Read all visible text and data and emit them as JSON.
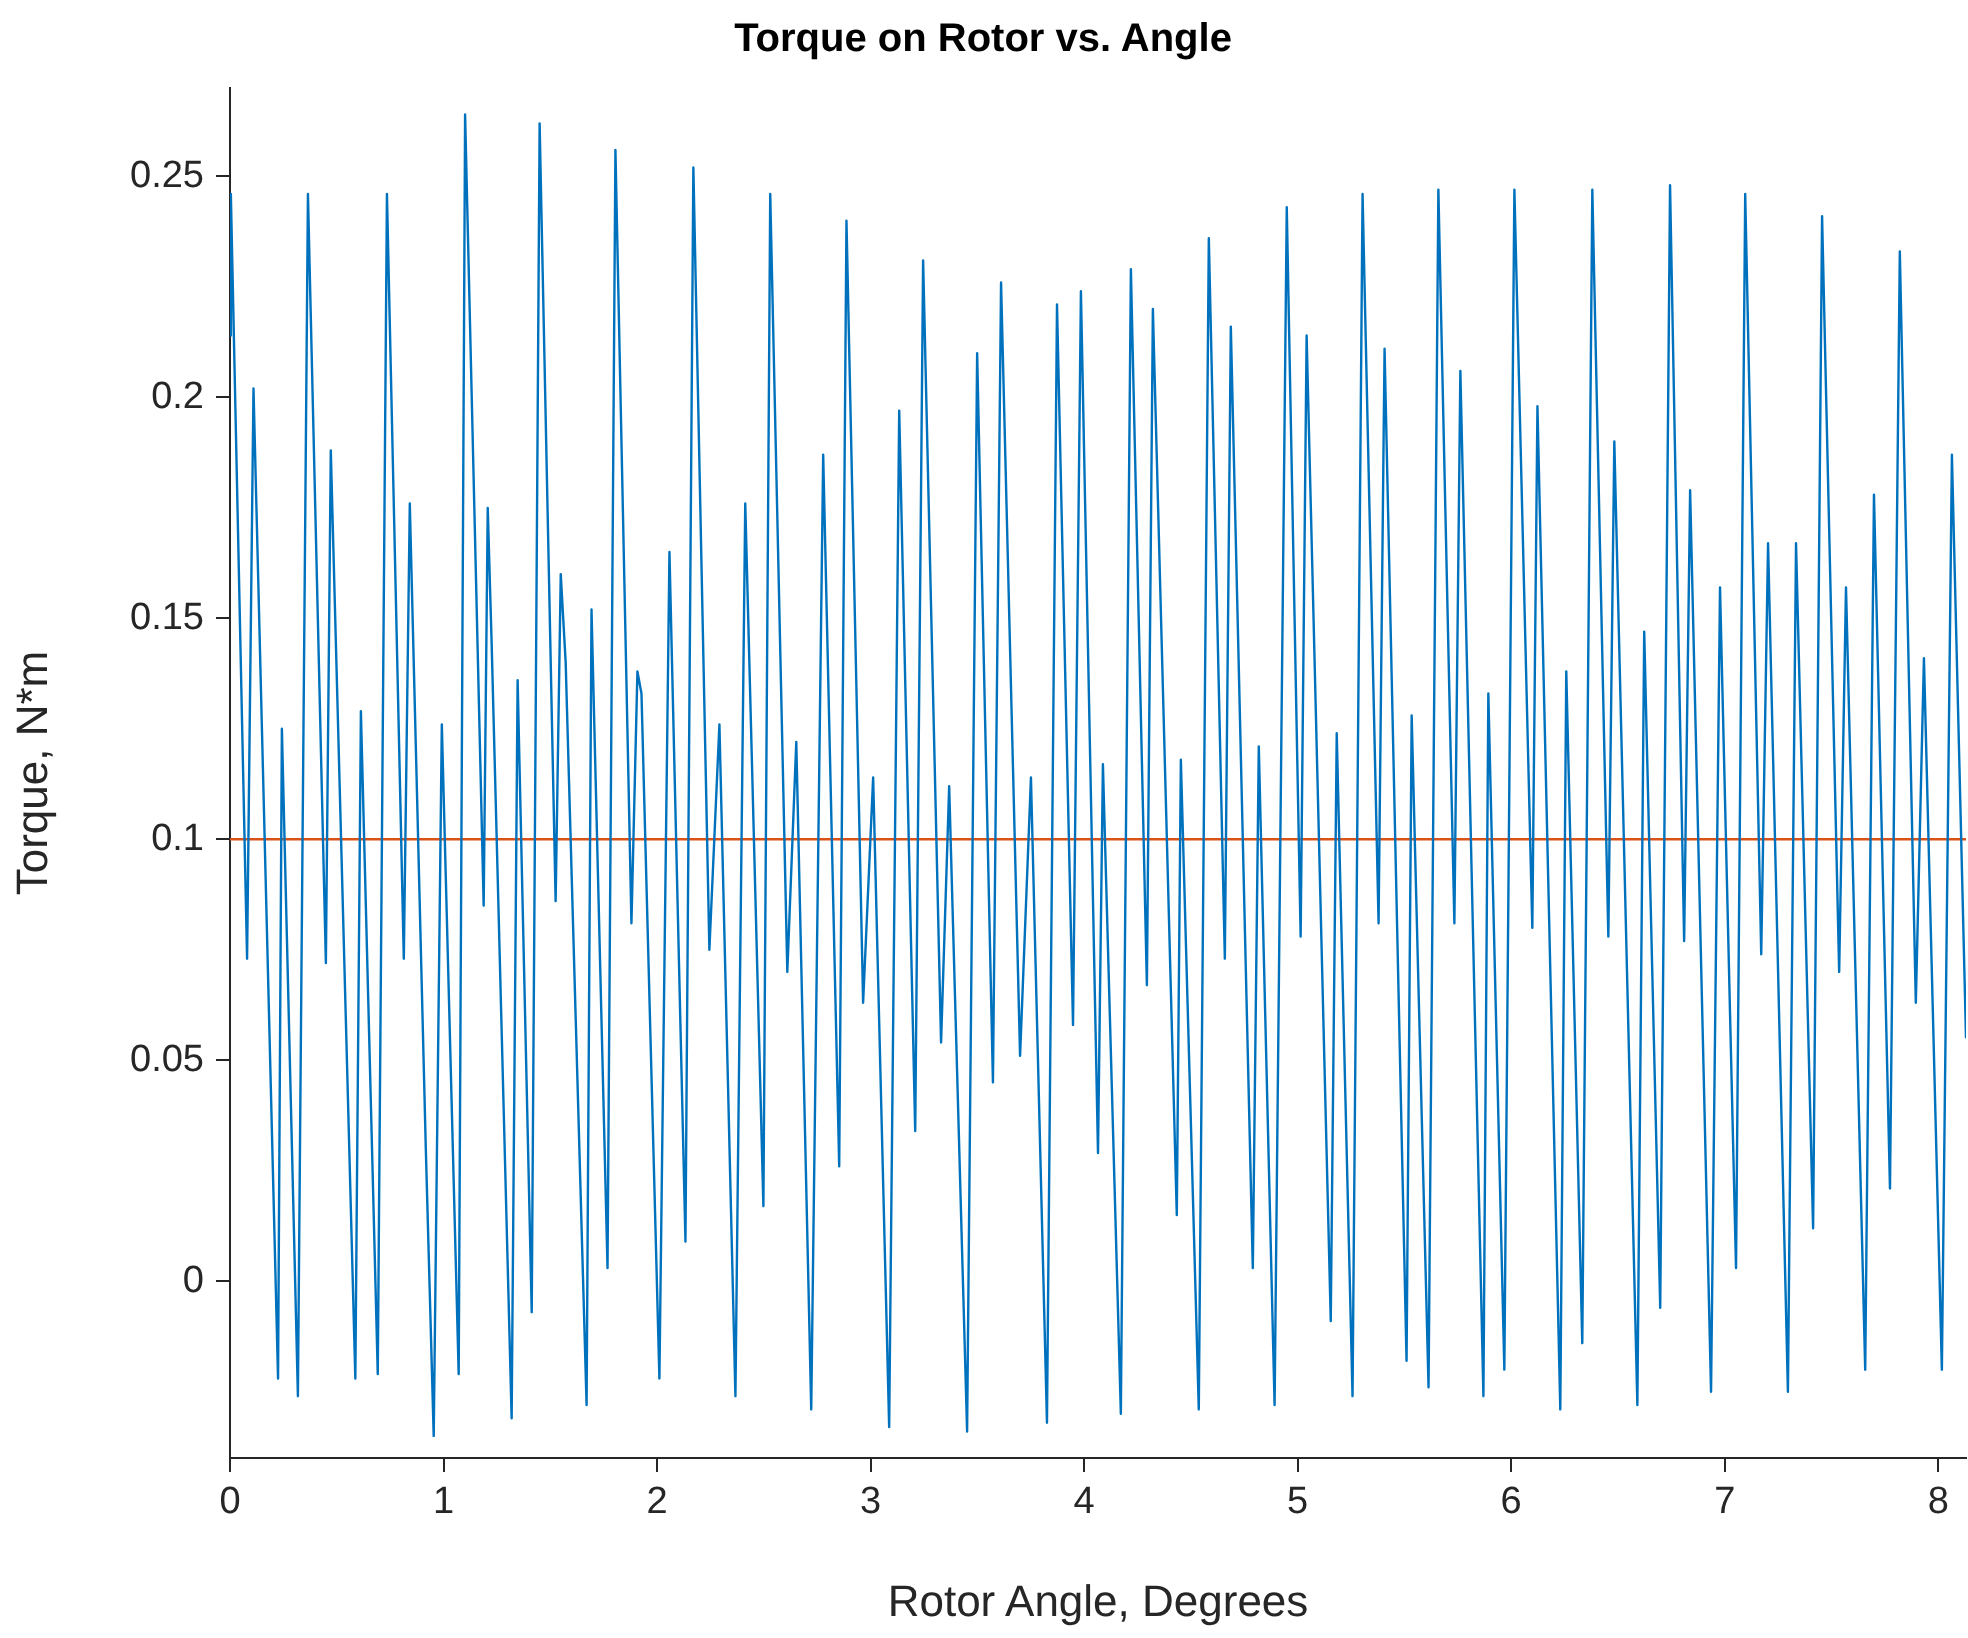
{
  "chart_data": {
    "type": "line",
    "title": "Torque on Rotor vs. Angle",
    "xlabel": "Rotor Angle, Degrees",
    "ylabel": "Torque, N*m",
    "x": [
      0,
      0.004,
      0.08,
      0.11,
      0.225,
      0.243,
      0.318,
      0.365,
      0.449,
      0.472,
      0.587,
      0.613,
      0.692,
      0.735,
      0.814,
      0.842,
      0.917,
      0.954,
      0.992,
      1.071,
      1.101,
      1.188,
      1.207,
      1.225,
      1.319,
      1.347,
      1.413,
      1.45,
      1.525,
      1.549,
      1.572,
      1.67,
      1.693,
      1.768,
      1.805,
      1.88,
      1.908,
      1.927,
      2.011,
      2.058,
      2.133,
      2.17,
      2.245,
      2.292,
      2.367,
      2.413,
      2.498,
      2.53,
      2.61,
      2.652,
      2.722,
      2.778,
      2.853,
      2.887,
      2.965,
      3.012,
      3.087,
      3.134,
      3.209,
      3.246,
      3.33,
      3.368,
      3.452,
      3.499,
      3.573,
      3.611,
      3.7,
      3.751,
      3.826,
      3.873,
      3.948,
      3.985,
      4.065,
      4.088,
      4.172,
      4.219,
      4.294,
      4.322,
      4.434,
      4.453,
      4.537,
      4.584,
      4.659,
      4.687,
      4.79,
      4.818,
      4.892,
      4.949,
      5.014,
      5.042,
      5.155,
      5.183,
      5.257,
      5.304,
      5.379,
      5.407,
      5.51,
      5.534,
      5.613,
      5.659,
      5.734,
      5.762,
      5.87,
      5.893,
      5.968,
      6.015,
      6.099,
      6.123,
      6.23,
      6.258,
      6.333,
      6.38,
      6.455,
      6.483,
      6.591,
      6.623,
      6.698,
      6.744,
      6.81,
      6.838,
      6.936,
      6.978,
      7.053,
      7.096,
      7.171,
      7.203,
      7.296,
      7.334,
      7.414,
      7.456,
      7.536,
      7.568,
      7.658,
      7.699,
      7.774,
      7.82,
      7.895,
      7.933,
      8.017,
      8.064,
      8.13
    ],
    "series": [
      {
        "color": "#0072bd",
        "values": [
          0.214,
          0.246,
          0.073,
          0.202,
          -0.022,
          0.125,
          -0.026,
          0.246,
          0.072,
          0.188,
          -0.022,
          0.129,
          -0.021,
          0.246,
          0.073,
          0.176,
          0.03,
          -0.035,
          0.126,
          -0.021,
          0.264,
          0.085,
          0.175,
          0.145,
          -0.031,
          0.136,
          -0.007,
          0.262,
          0.086,
          0.16,
          0.14,
          -0.028,
          0.152,
          0.003,
          0.256,
          0.081,
          0.138,
          0.133,
          -0.022,
          0.165,
          0.009,
          0.252,
          0.075,
          0.126,
          -0.026,
          0.176,
          0.017,
          0.246,
          0.07,
          0.122,
          -0.029,
          0.187,
          0.026,
          0.24,
          0.063,
          0.114,
          -0.033,
          0.197,
          0.034,
          0.231,
          0.054,
          0.112,
          -0.034,
          0.21,
          0.045,
          0.226,
          0.051,
          0.114,
          -0.032,
          0.221,
          0.058,
          0.224,
          0.029,
          0.117,
          -0.03,
          0.229,
          0.067,
          0.22,
          0.015,
          0.118,
          -0.029,
          0.236,
          0.073,
          0.216,
          0.003,
          0.121,
          -0.028,
          0.243,
          0.078,
          0.214,
          -0.009,
          0.124,
          -0.026,
          0.246,
          0.081,
          0.211,
          -0.018,
          0.128,
          -0.024,
          0.247,
          0.081,
          0.206,
          -0.026,
          0.133,
          -0.02,
          0.247,
          0.08,
          0.198,
          -0.029,
          0.138,
          -0.014,
          0.247,
          0.078,
          0.19,
          -0.028,
          0.147,
          -0.006,
          0.248,
          0.077,
          0.179,
          -0.025,
          0.157,
          0.003,
          0.246,
          0.074,
          0.167,
          -0.025,
          0.167,
          0.012,
          0.241,
          0.07,
          0.157,
          -0.02,
          0.178,
          0.021,
          0.233,
          0.063,
          0.141,
          -0.02,
          0.187,
          0.055
        ]
      }
    ],
    "ref_lines": [
      {
        "axis": "y",
        "value": 0.1,
        "color": "#d95319"
      }
    ],
    "xlim": [
      0,
      8.13
    ],
    "xticks": [
      0,
      1,
      2,
      3,
      4,
      5,
      6,
      7,
      8
    ],
    "ylim": [
      -0.04,
      0.27
    ],
    "yticks": [
      0,
      0.05,
      0.1,
      0.15,
      0.2,
      0.25
    ],
    "grid": false,
    "legend": false,
    "marker": "none",
    "line_style": "solid"
  }
}
